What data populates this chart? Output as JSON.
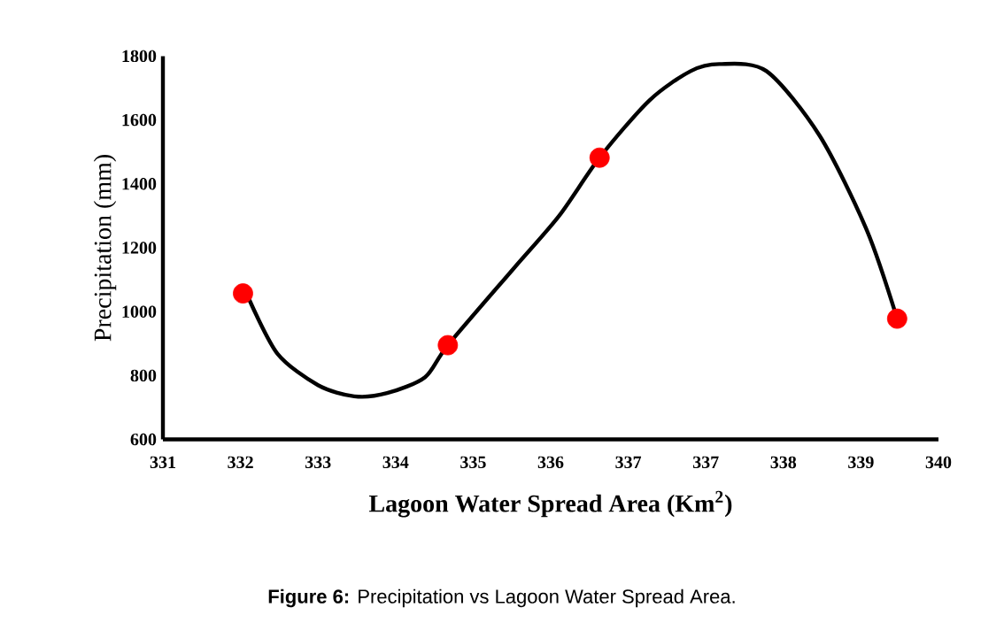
{
  "chart_data": {
    "type": "line",
    "xlabel": "Lagoon Water Spread Area (Km$^{2}$)",
    "ylabel": "Precipitation (mm)",
    "annotations": [
      "**Figure 6:** Precipitation vs Lagoon Water Spread Area."
    ],
    "xlim": [
      331,
      340.2
    ],
    "ylim": [
      600,
      1800
    ],
    "xticks": [
      {
        "value": 331,
        "label": "331"
      },
      {
        "value": 331.92,
        "label": "332"
      },
      {
        "value": 332.84,
        "label": "333"
      },
      {
        "value": 333.76,
        "label": "334"
      },
      {
        "value": 334.68,
        "label": "335"
      },
      {
        "value": 335.6,
        "label": "336"
      },
      {
        "value": 336.52,
        "label": "337"
      },
      {
        "value": 337.44,
        "label": "337"
      },
      {
        "value": 338.36,
        "label": "338"
      },
      {
        "value": 339.28,
        "label": "339"
      },
      {
        "value": 340.2,
        "label": "340"
      }
    ],
    "yticks": [
      600,
      800,
      1000,
      1200,
      1400,
      1600,
      1800
    ],
    "series": [
      {
        "type": "line",
        "color": "#000000",
        "marker": "none",
        "line_style": "solid",
        "x": [
          332.02,
          332.36,
          332.84,
          333.27,
          333.66,
          334.11,
          334.38,
          335.16,
          335.7,
          336.18,
          336.77,
          337.26,
          337.6,
          338.16,
          338.79,
          339.35,
          339.71
        ],
        "values": [
          1040,
          868,
          770,
          735,
          745,
          795,
          895,
          1135,
          1300,
          1482,
          1661,
          1753,
          1775,
          1753,
          1551,
          1255,
          978
        ]
      },
      {
        "type": "scatter",
        "color": "#ff0000",
        "marker": "circle",
        "x": [
          331.95,
          334.38,
          336.18,
          339.71
        ],
        "values": [
          1057,
          895,
          1482,
          978
        ]
      }
    ]
  }
}
